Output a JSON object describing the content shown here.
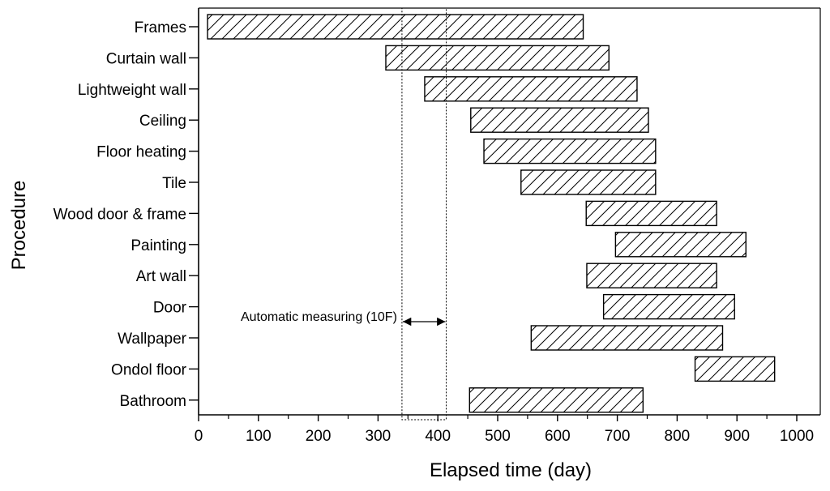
{
  "chart_data": {
    "type": "bar",
    "orientation": "horizontal",
    "xlabel": "Elapsed time (day)",
    "ylabel": "Procedure",
    "xlim": [
      0,
      1040
    ],
    "xticks": [
      0,
      100,
      200,
      300,
      400,
      500,
      600,
      700,
      800,
      900,
      1000
    ],
    "grid": false,
    "bar_fill": "hatched",
    "categories": [
      "Frames",
      "Curtain wall",
      "Lightweight wall",
      "Ceiling",
      "Floor heating",
      "Tile",
      "Wood door & frame",
      "Painting",
      "Art wall",
      "Door",
      "Wallpaper",
      "Ondol floor",
      "Bathroom"
    ],
    "series": [
      {
        "start": [
          15,
          313,
          378,
          455,
          477,
          539,
          648,
          697,
          649,
          677,
          556,
          830,
          453
        ],
        "end": [
          643,
          686,
          733,
          752,
          764,
          764,
          866,
          915,
          866,
          896,
          876,
          963,
          743
        ]
      }
    ],
    "annotations": [
      {
        "text": "Automatic measuring (10F)",
        "type": "range",
        "x_start": 340,
        "x_end": 414
      }
    ]
  }
}
